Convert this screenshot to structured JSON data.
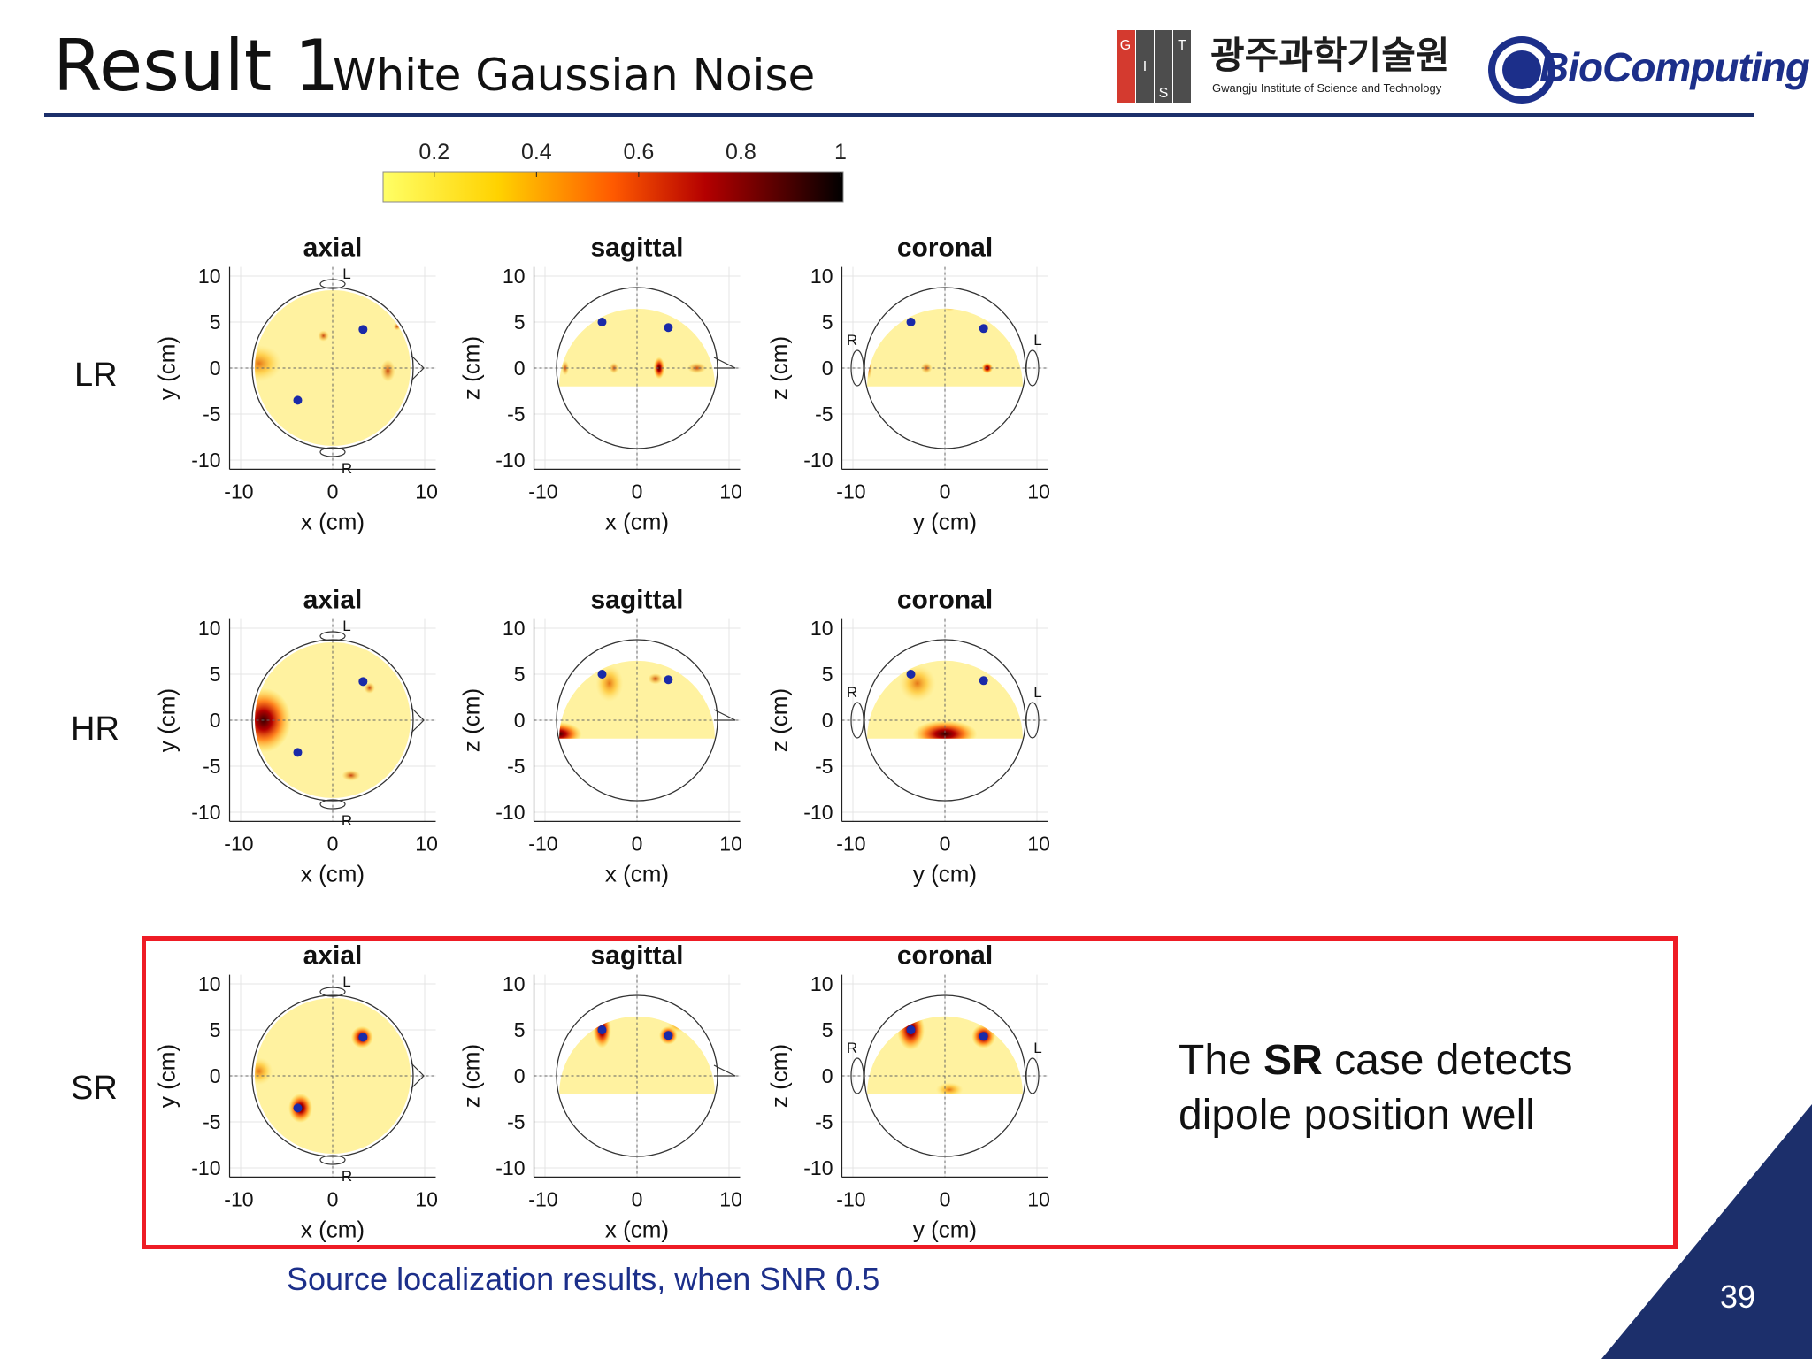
{
  "header": {
    "title": "Result 1",
    "subtitle": "White Gaussian Noise"
  },
  "logos": {
    "gist_letters": [
      "G",
      "I",
      "S",
      "T"
    ],
    "gist_korean": "광주과학기술원",
    "gist_english": "Gwangju Institute of Science and Technology",
    "biocomputing": "BioComputing"
  },
  "colorbar": {
    "ticks": [
      "0.2",
      "0.4",
      "0.6",
      "0.8",
      "1"
    ]
  },
  "rows": [
    {
      "label": "LR"
    },
    {
      "label": "HR"
    },
    {
      "label": "SR"
    }
  ],
  "panels": {
    "titles": [
      "axial",
      "sagittal",
      "coronal"
    ],
    "xlabels": [
      "x (cm)",
      "x (cm)",
      "y (cm)"
    ],
    "ylabels": [
      "y (cm)",
      "z (cm)",
      "z (cm)"
    ],
    "xticks": [
      "-10",
      "0",
      "10"
    ],
    "yticks": [
      "10",
      "5",
      "0",
      "-5",
      "-10"
    ],
    "axial_markers": {
      "top": "L",
      "bottom": "R"
    },
    "coronal_markers": {
      "left": "R",
      "right": "L"
    }
  },
  "conclusion": {
    "pre": "The ",
    "bold": "SR",
    "post": " case detects",
    "line2": "dipole position well"
  },
  "caption": "Source localization results, when SNR 0.5",
  "page_number": "39",
  "colors": {
    "navy": "#1c2f6b",
    "red_box": "#ee1c25",
    "dipole": "#1a2aa8",
    "field_base": "#fff2a0"
  }
}
